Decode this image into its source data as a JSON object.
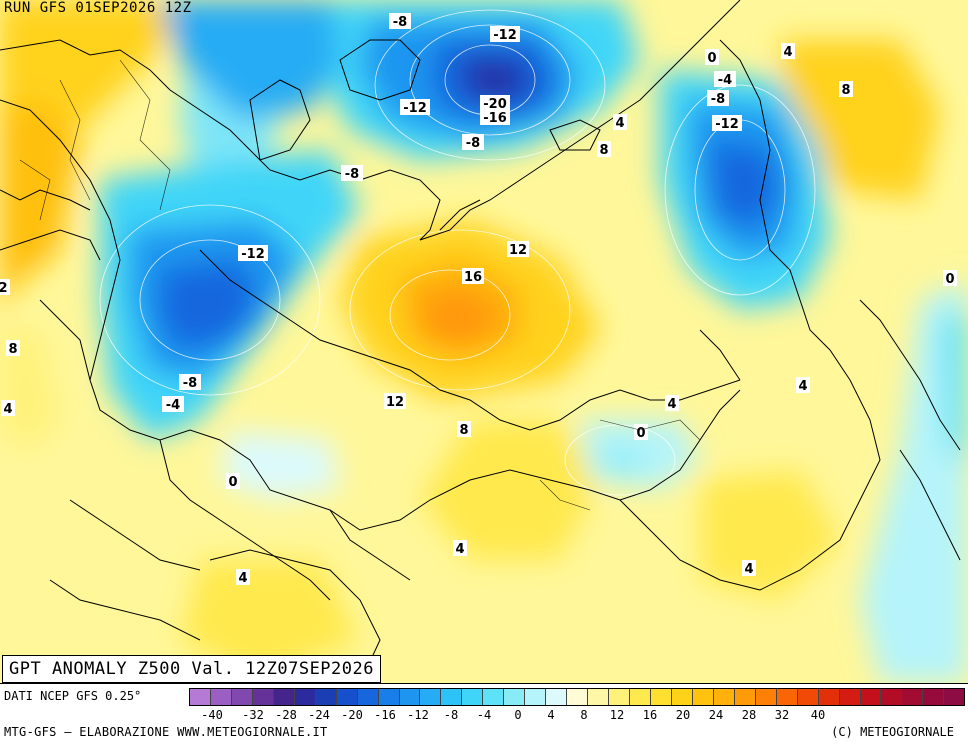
{
  "header": {
    "run_title": "RUN GFS 01SEP2026 12Z"
  },
  "map": {
    "title": "GPT ANOMALY Z500 Val. 12Z07SEP2026",
    "contour_labels": [
      {
        "text": "-8",
        "id": "contour-label-n8-a"
      },
      {
        "text": "-12",
        "id": "contour-label-n12-a"
      },
      {
        "text": "-12",
        "id": "contour-label-n12-b"
      },
      {
        "text": "-20",
        "id": "contour-label-n20"
      },
      {
        "text": "-16",
        "id": "contour-label-n16"
      },
      {
        "text": "-8",
        "id": "contour-label-n8-b"
      },
      {
        "text": "-8",
        "id": "contour-label-n8-c"
      },
      {
        "text": "0",
        "id": "contour-label-0-a"
      },
      {
        "text": "4",
        "id": "contour-label-4-a"
      },
      {
        "text": "-4",
        "id": "contour-label-n4-a"
      },
      {
        "text": "-8",
        "id": "contour-label-n8-d"
      },
      {
        "text": "8",
        "id": "contour-label-8-a"
      },
      {
        "text": "-12",
        "id": "contour-label-n12-c"
      },
      {
        "text": "4",
        "id": "contour-label-4-b"
      },
      {
        "text": "8",
        "id": "contour-label-8-b"
      },
      {
        "text": "-12",
        "id": "contour-label-n12-d"
      },
      {
        "text": "12",
        "id": "contour-label-12-a"
      },
      {
        "text": "16",
        "id": "contour-label-16"
      },
      {
        "text": "-8",
        "id": "contour-label-n8-e"
      },
      {
        "text": "-4",
        "id": "contour-label-n4-b"
      },
      {
        "text": "12",
        "id": "contour-label-12-b"
      },
      {
        "text": "8",
        "id": "contour-label-8-c"
      },
      {
        "text": "0",
        "id": "contour-label-0-b"
      },
      {
        "text": "0",
        "id": "contour-label-0-c"
      },
      {
        "text": "4",
        "id": "contour-label-4-c"
      },
      {
        "text": "4",
        "id": "contour-label-4-d"
      },
      {
        "text": "0",
        "id": "contour-label-0-d"
      },
      {
        "text": "4",
        "id": "contour-label-4-e"
      },
      {
        "text": "4",
        "id": "contour-label-4-f"
      },
      {
        "text": "4",
        "id": "contour-label-4-g"
      },
      {
        "text": "8",
        "id": "contour-label-8-d"
      },
      {
        "text": "4",
        "id": "contour-label-4-h"
      },
      {
        "text": "2",
        "id": "contour-label-2-edge"
      }
    ]
  },
  "legend": {
    "data_source": "DATI NCEP GFS 0.25°",
    "tick_labels": [
      "-40",
      "-32",
      "-28",
      "-24",
      "-20",
      "-16",
      "-12",
      "-8",
      "-4",
      "0",
      "4",
      "8",
      "12",
      "16",
      "20",
      "24",
      "28",
      "32",
      "40"
    ],
    "colors": [
      "#b57ad6",
      "#9b5fc4",
      "#8148b0",
      "#643298",
      "#44258c",
      "#2c2a9c",
      "#1b3eb5",
      "#1750cc",
      "#1866de",
      "#1a7ee9",
      "#1e96f0",
      "#25acf4",
      "#2ec3f7",
      "#3fd5f8",
      "#5ee2f7",
      "#88ecf7",
      "#b5f4fa",
      "#dcfafc",
      "#fffbd6",
      "#fff7a8",
      "#fff27a",
      "#ffe94e",
      "#ffdf30",
      "#ffd21a",
      "#ffc20f",
      "#ffb00a",
      "#ff9a08",
      "#ff8006",
      "#fa6505",
      "#f04a06",
      "#e33009",
      "#d41c12",
      "#c3101c",
      "#b20c27",
      "#a20b32",
      "#960b3b",
      "#8d0c44"
    ]
  },
  "footer": {
    "credit_left": "MTG-GFS — ELABORAZIONE WWW.METEOGIORNALE.IT",
    "credit_right": "(C) METEOGIORNALE"
  }
}
